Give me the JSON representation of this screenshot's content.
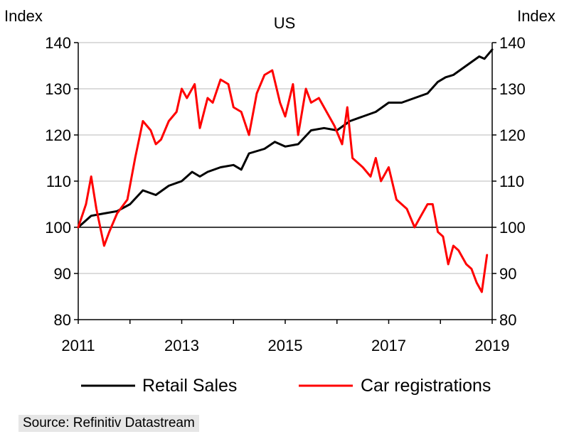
{
  "chart_data": {
    "type": "line",
    "title": "US",
    "ylabel_left": "Index",
    "ylabel_right": "Index",
    "ylim": [
      80,
      140
    ],
    "yticks": [
      80,
      90,
      100,
      110,
      120,
      130,
      140
    ],
    "xlim": [
      2011,
      2019
    ],
    "xticks": [
      "2011",
      "2013",
      "2015",
      "2017",
      "2019"
    ],
    "reference_line": 100,
    "grid": true,
    "legend_position": "bottom",
    "series": [
      {
        "name": "Retail Sales",
        "color": "#000000",
        "x": [
          2011.0,
          2011.25,
          2011.5,
          2011.75,
          2012.0,
          2012.25,
          2012.5,
          2012.75,
          2013.0,
          2013.2,
          2013.35,
          2013.5,
          2013.75,
          2014.0,
          2014.15,
          2014.3,
          2014.6,
          2014.8,
          2015.0,
          2015.25,
          2015.5,
          2015.75,
          2016.0,
          2016.25,
          2016.5,
          2016.75,
          2017.0,
          2017.25,
          2017.5,
          2017.75,
          2017.95,
          2018.1,
          2018.25,
          2018.5,
          2018.75,
          2018.85,
          2019.0
        ],
        "values": [
          100,
          102.5,
          103,
          103.5,
          105,
          108,
          107,
          109,
          110,
          112,
          111,
          112,
          113,
          113.5,
          112.5,
          116,
          117,
          118.5,
          117.5,
          118,
          121,
          121.5,
          121,
          123,
          124,
          125,
          127,
          127,
          128,
          129,
          131.5,
          132.5,
          133,
          135,
          137,
          136.5,
          138.5
        ]
      },
      {
        "name": "Car registrations",
        "color": "#ff0000",
        "x": [
          2011.0,
          2011.15,
          2011.25,
          2011.35,
          2011.5,
          2011.6,
          2011.75,
          2011.95,
          2012.1,
          2012.25,
          2012.4,
          2012.5,
          2012.6,
          2012.75,
          2012.9,
          2013.0,
          2013.1,
          2013.25,
          2013.35,
          2013.5,
          2013.6,
          2013.75,
          2013.9,
          2014.0,
          2014.15,
          2014.3,
          2014.45,
          2014.6,
          2014.75,
          2014.9,
          2015.0,
          2015.15,
          2015.25,
          2015.4,
          2015.5,
          2015.65,
          2015.8,
          2015.95,
          2016.1,
          2016.2,
          2016.3,
          2016.5,
          2016.65,
          2016.75,
          2016.85,
          2017.0,
          2017.15,
          2017.25,
          2017.35,
          2017.5,
          2017.6,
          2017.75,
          2017.85,
          2017.95,
          2018.05,
          2018.15,
          2018.25,
          2018.35,
          2018.5,
          2018.6,
          2018.7,
          2018.8,
          2018.9
        ],
        "values": [
          100,
          105,
          111,
          104,
          96,
          99,
          103,
          106,
          115,
          123,
          121,
          118,
          119,
          123,
          125,
          130,
          128,
          131,
          121.5,
          128,
          127,
          132,
          131,
          126,
          125,
          120,
          129,
          133,
          134,
          127,
          124,
          131,
          120,
          130,
          127,
          128,
          125,
          122,
          118,
          126,
          115,
          113,
          111,
          115,
          110,
          113,
          106,
          105,
          104,
          100,
          102,
          105,
          105,
          99,
          98,
          92,
          96,
          95,
          92,
          91,
          88,
          86,
          94
        ]
      }
    ],
    "source": "Source: Refinitiv Datastream"
  }
}
